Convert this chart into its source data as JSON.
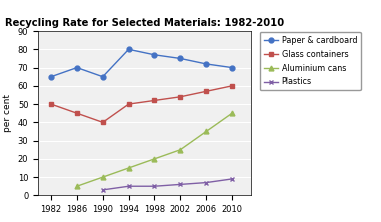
{
  "title": "Recycling Rate for Selected Materials: 1982-2010",
  "ylabel": "per cent",
  "years": [
    1982,
    1986,
    1990,
    1994,
    1998,
    2002,
    2006,
    2010
  ],
  "series": [
    {
      "label": "Paper & cardboard",
      "values": [
        65,
        70,
        65,
        80,
        77,
        75,
        72,
        70
      ],
      "color": "#4472C4",
      "marker": "o"
    },
    {
      "label": "Glass containers",
      "values": [
        50,
        45,
        40,
        50,
        52,
        54,
        57,
        60
      ],
      "color": "#C0504D",
      "marker": "s"
    },
    {
      "label": "Aluminium cans",
      "values": [
        null,
        5,
        10,
        15,
        20,
        25,
        35,
        45
      ],
      "color": "#9BBB59",
      "marker": "^"
    },
    {
      "label": "Plastics",
      "values": [
        null,
        null,
        3,
        5,
        5,
        6,
        7,
        9
      ],
      "color": "#7F5FA5",
      "marker": "x"
    }
  ],
  "ylim": [
    0,
    90
  ],
  "yticks": [
    0,
    10,
    20,
    30,
    40,
    50,
    60,
    70,
    80,
    90
  ],
  "xlim": [
    1980,
    2013
  ],
  "xticks": [
    1982,
    1986,
    1990,
    1994,
    1998,
    2002,
    2006,
    2010
  ],
  "bg_color": "#FFFFFF",
  "plot_bg_color": "#F0F0F0"
}
